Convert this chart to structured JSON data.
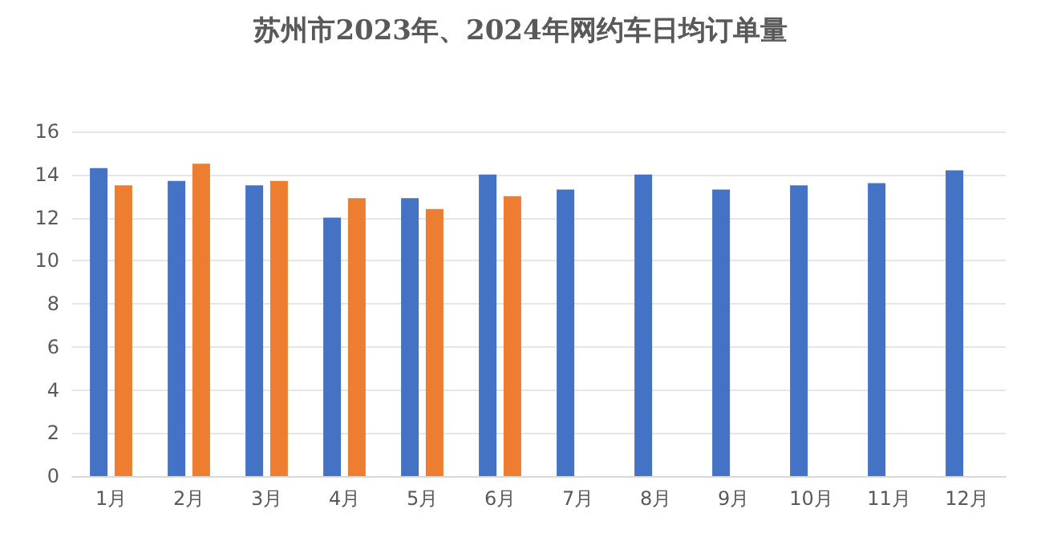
{
  "chart_data": {
    "type": "bar",
    "title": "苏州市2023年、2024年网约车日均订单量",
    "categories": [
      "1月",
      "2月",
      "3月",
      "4月",
      "5月",
      "6月",
      "7月",
      "8月",
      "9月",
      "10月",
      "11月",
      "12月"
    ],
    "series": [
      {
        "color": "#4472c4",
        "values": [
          14.3,
          13.7,
          13.5,
          12.0,
          12.9,
          14.0,
          13.3,
          14.0,
          13.3,
          13.5,
          13.6,
          14.2
        ]
      },
      {
        "color": "#ed7d31",
        "values": [
          13.5,
          14.5,
          13.7,
          12.9,
          12.4,
          13.0,
          null,
          null,
          null,
          null,
          null,
          null
        ]
      }
    ],
    "ylim": [
      0,
      16
    ],
    "yticks": [
      0,
      2,
      4,
      6,
      8,
      10,
      12,
      14,
      16
    ],
    "grid": "y"
  }
}
